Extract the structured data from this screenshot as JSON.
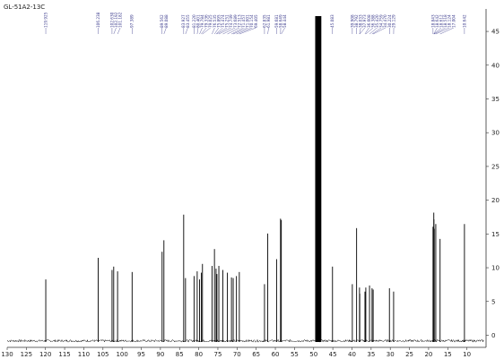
{
  "chart_data": {
    "type": "line",
    "title": "GL-51A2-13C",
    "xlabel": "",
    "ylabel": "",
    "x_reversed": true,
    "xlim": [
      130,
      5
    ],
    "ylim": [
      -1,
      47
    ],
    "x_ticks": [
      130,
      125,
      120,
      115,
      110,
      105,
      100,
      95,
      90,
      85,
      80,
      75,
      70,
      65,
      60,
      55,
      50,
      45,
      40,
      35,
      30,
      25,
      20,
      15,
      10
    ],
    "y_ticks": [
      0,
      5,
      10,
      15,
      20,
      25,
      30,
      35,
      40,
      45
    ],
    "colors": {
      "spectrum": "#000000",
      "labels": "#3a3a8c",
      "axis": "#333333"
    },
    "peaks": [
      {
        "x": 119.925,
        "y": 8
      },
      {
        "x": 106.238,
        "y": 11.2
      },
      {
        "x": 102.63,
        "y": 9.4
      },
      {
        "x": 102.192,
        "y": 9.9
      },
      {
        "x": 101.182,
        "y": 9.2
      },
      {
        "x": 97.389,
        "y": 9.1
      },
      {
        "x": 89.562,
        "y": 12.1
      },
      {
        "x": 89.088,
        "y": 13.8
      },
      {
        "x": 83.927,
        "y": 17.6
      },
      {
        "x": 83.455,
        "y": 8.2
      },
      {
        "x": 81.22,
        "y": 8.5
      },
      {
        "x": 80.401,
        "y": 9.2
      },
      {
        "x": 79.784,
        "y": 8.0
      },
      {
        "x": 79.336,
        "y": 9.0
      },
      {
        "x": 79.025,
        "y": 10.3
      },
      {
        "x": 76.535,
        "y": 10.0
      },
      {
        "x": 75.895,
        "y": 12.5
      },
      {
        "x": 75.474,
        "y": 9.6
      },
      {
        "x": 75.251,
        "y": 8.8
      },
      {
        "x": 74.749,
        "y": 10.0
      },
      {
        "x": 73.689,
        "y": 9.4
      },
      {
        "x": 72.513,
        "y": 9.0
      },
      {
        "x": 71.457,
        "y": 8.3
      },
      {
        "x": 71.001,
        "y": 8.2
      },
      {
        "x": 70.154,
        "y": 8.5
      },
      {
        "x": 69.405,
        "y": 9.1
      },
      {
        "x": 62.835,
        "y": 7.3
      },
      {
        "x": 61.981,
        "y": 14.8
      },
      {
        "x": 59.681,
        "y": 11.0
      },
      {
        "x": 58.649,
        "y": 17.0
      },
      {
        "x": 58.444,
        "y": 16.8
      },
      {
        "x": 48.8,
        "y": 48
      },
      {
        "x": 45.083,
        "y": 9.9
      },
      {
        "x": 39.908,
        "y": 7.3
      },
      {
        "x": 38.792,
        "y": 15.6
      },
      {
        "x": 38.033,
        "y": 6.8
      },
      {
        "x": 37.973,
        "y": 5.9
      },
      {
        "x": 36.608,
        "y": 6.2
      },
      {
        "x": 36.388,
        "y": 6.8
      },
      {
        "x": 35.42,
        "y": 7.1
      },
      {
        "x": 34.759,
        "y": 6.7
      },
      {
        "x": 34.47,
        "y": 6.5
      },
      {
        "x": 30.224,
        "y": 6.7
      },
      {
        "x": 29.129,
        "y": 6.2
      },
      {
        "x": 18.843,
        "y": 15.8
      },
      {
        "x": 18.642,
        "y": 17.9
      },
      {
        "x": 18.612,
        "y": 16.9
      },
      {
        "x": 18.518,
        "y": 15.5
      },
      {
        "x": 18.124,
        "y": 16.2
      },
      {
        "x": 17.004,
        "y": 14.0
      },
      {
        "x": 10.642,
        "y": 16.2
      }
    ],
    "peak_labels": [
      {
        "x": 119.925,
        "text": "119.925"
      },
      {
        "x": 106.238,
        "text": "106.238"
      },
      {
        "x": 102.63,
        "text": "102.630"
      },
      {
        "x": 102.192,
        "text": "102.192"
      },
      {
        "x": 101.182,
        "text": "101.182"
      },
      {
        "x": 97.389,
        "text": "97.389"
      },
      {
        "x": 89.562,
        "text": "89.562"
      },
      {
        "x": 89.088,
        "text": "89.088"
      },
      {
        "x": 83.927,
        "text": "83.927"
      },
      {
        "x": 83.455,
        "text": "83.455"
      },
      {
        "x": 81.22,
        "text": "81.220"
      },
      {
        "x": 80.401,
        "text": "80.401"
      },
      {
        "x": 79.784,
        "text": "79.784"
      },
      {
        "x": 79.336,
        "text": "79.336"
      },
      {
        "x": 79.025,
        "text": "79.025"
      },
      {
        "x": 76.535,
        "text": "76.535"
      },
      {
        "x": 75.895,
        "text": "75.895"
      },
      {
        "x": 75.474,
        "text": "75.474"
      },
      {
        "x": 75.251,
        "text": "75.251"
      },
      {
        "x": 74.749,
        "text": "74.749"
      },
      {
        "x": 73.689,
        "text": "73.689"
      },
      {
        "x": 72.513,
        "text": "72.513"
      },
      {
        "x": 71.457,
        "text": "71.457"
      },
      {
        "x": 71.001,
        "text": "71.001"
      },
      {
        "x": 70.154,
        "text": "70.154"
      },
      {
        "x": 69.405,
        "text": "69.405"
      },
      {
        "x": 62.835,
        "text": "62.835"
      },
      {
        "x": 61.981,
        "text": "61.981"
      },
      {
        "x": 59.681,
        "text": "59.681"
      },
      {
        "x": 58.649,
        "text": "58.649"
      },
      {
        "x": 58.444,
        "text": "58.444"
      },
      {
        "x": 45.083,
        "text": "45.083"
      },
      {
        "x": 39.908,
        "text": "39.908"
      },
      {
        "x": 38.792,
        "text": "38.792"
      },
      {
        "x": 38.033,
        "text": "38.033"
      },
      {
        "x": 37.973,
        "text": "37.973"
      },
      {
        "x": 36.608,
        "text": "36.608"
      },
      {
        "x": 36.388,
        "text": "36.388"
      },
      {
        "x": 35.42,
        "text": "35.420"
      },
      {
        "x": 34.759,
        "text": "34.759"
      },
      {
        "x": 34.47,
        "text": "34.470"
      },
      {
        "x": 30.224,
        "text": "30.224"
      },
      {
        "x": 29.129,
        "text": "29.129"
      },
      {
        "x": 18.843,
        "text": "18.843"
      },
      {
        "x": 18.642,
        "text": "18.642"
      },
      {
        "x": 18.612,
        "text": "18.612"
      },
      {
        "x": 18.518,
        "text": "18.518"
      },
      {
        "x": 18.124,
        "text": "18.124"
      },
      {
        "x": 17.004,
        "text": "17.004"
      },
      {
        "x": 10.642,
        "text": "10.642"
      }
    ]
  }
}
